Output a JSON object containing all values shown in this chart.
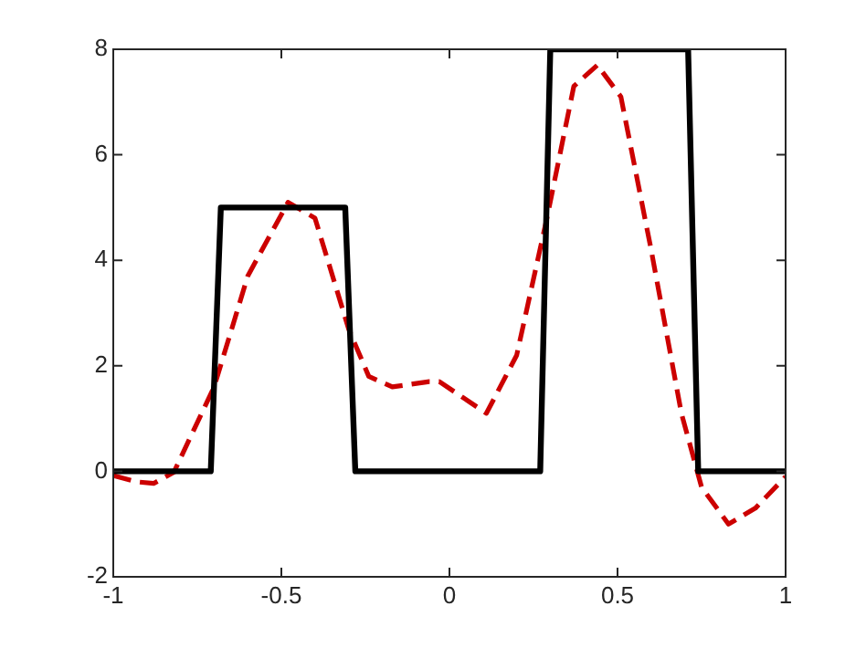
{
  "chart_data": {
    "type": "line",
    "xlim": [
      -1,
      1
    ],
    "xticks": [
      -1,
      -0.5,
      0,
      0.5,
      1
    ],
    "ylim": [
      -2,
      8
    ],
    "yticks": [
      -2,
      0,
      2,
      4,
      6,
      8
    ],
    "grid": false,
    "legend": false,
    "marker": "none",
    "series": [
      {
        "color": "#000000",
        "line_style": "solid",
        "x": [
          -1,
          -0.71,
          -0.68,
          -0.31,
          -0.28,
          0.27,
          0.3,
          0.71,
          0.74,
          1
        ],
        "values": [
          0,
          0,
          5,
          5,
          0,
          0,
          8,
          8,
          0,
          0
        ]
      },
      {
        "color": "#cc0000",
        "line_style": "dashed",
        "x": [
          -1,
          -0.93,
          -0.88,
          -0.82,
          -0.7,
          -0.6,
          -0.48,
          -0.4,
          -0.3,
          -0.24,
          -0.17,
          -0.06,
          -0.03,
          0.11,
          0.2,
          0.29,
          0.37,
          0.44,
          0.51,
          0.6,
          0.69,
          0.75,
          0.83,
          0.91,
          1
        ],
        "values": [
          -0.08,
          -0.2,
          -0.23,
          -0.02,
          1.6,
          3.7,
          5.1,
          4.8,
          2.7,
          1.8,
          1.6,
          1.7,
          1.7,
          1.1,
          2.2,
          4.8,
          7.3,
          7.7,
          7.1,
          4.2,
          1.1,
          -0.3,
          -1,
          -0.7,
          -0.1
        ]
      }
    ]
  }
}
